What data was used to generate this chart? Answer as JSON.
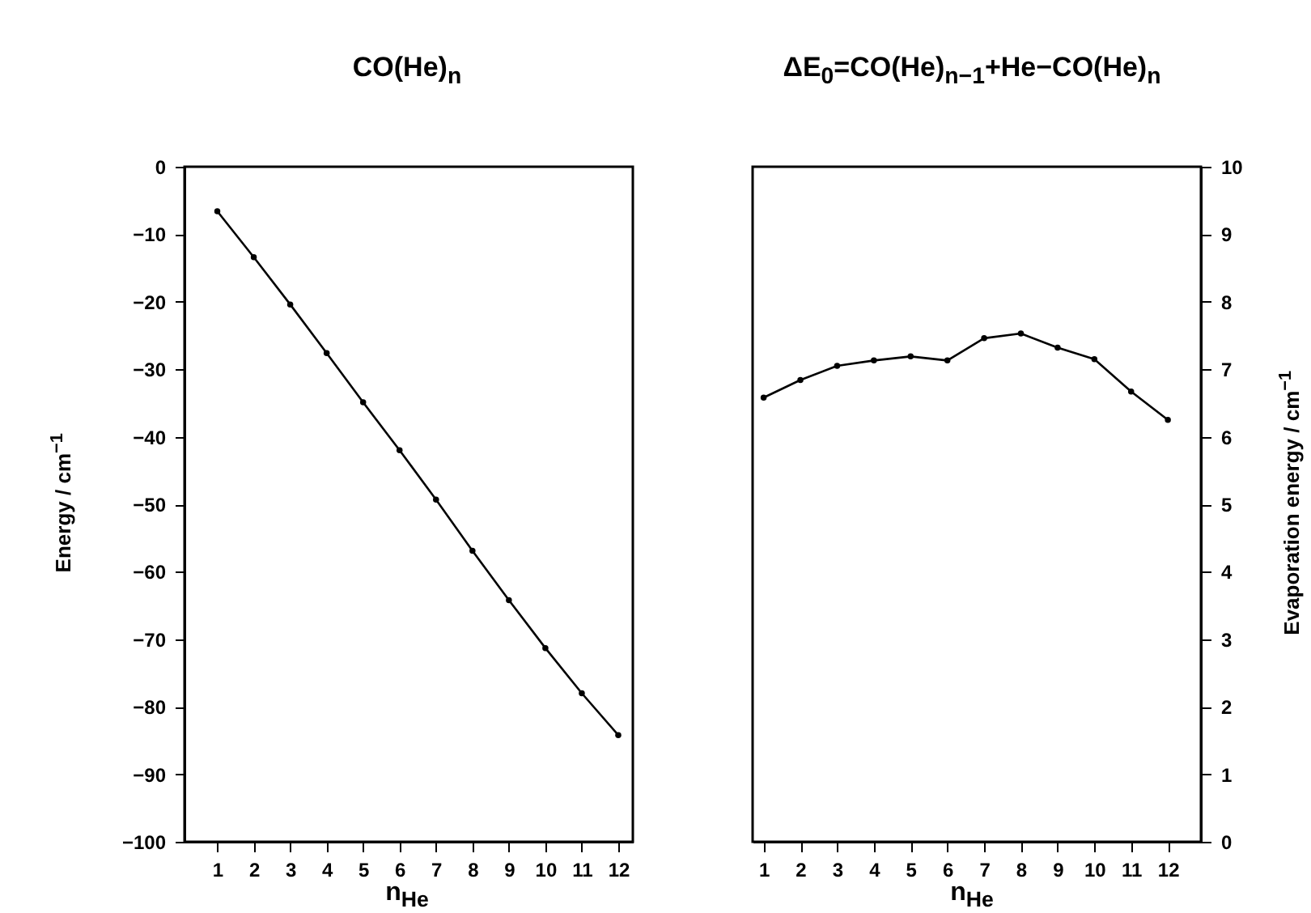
{
  "chart_data": [
    {
      "type": "line",
      "title": "CO(He)$_{n}$",
      "xlabel": "n$_{He}$",
      "ylabel": "Energy / cm$^{−1}$",
      "x": [
        1,
        2,
        3,
        4,
        5,
        6,
        7,
        8,
        9,
        10,
        11,
        12
      ],
      "xlim": [
        0.1,
        12.4
      ],
      "xticks": [
        1,
        2,
        3,
        4,
        5,
        6,
        7,
        8,
        9,
        10,
        11,
        12
      ],
      "ylim": [
        -100,
        0
      ],
      "yticks": [
        -100,
        -90,
        -80,
        -70,
        -60,
        -50,
        -40,
        -30,
        -20,
        -10,
        0
      ],
      "grid": false,
      "marker": "circle",
      "line_style": "solid",
      "series": [
        {
          "color": "#000000",
          "values": [
            -6.6,
            -13.4,
            -20.4,
            -27.6,
            -34.9,
            -42.0,
            -49.3,
            -56.9,
            -64.2,
            -71.3,
            -78.0,
            -84.2
          ]
        }
      ]
    },
    {
      "type": "line",
      "title": "ΔE$_{0}$=CO(He)$_{n−1}$+He−CO(He)$_{n}$",
      "xlabel": "n$_{He}$",
      "y2label": "Evaporation energy / cm$^{−1}$",
      "x": [
        1,
        2,
        3,
        4,
        5,
        6,
        7,
        8,
        9,
        10,
        11,
        12
      ],
      "xlim": [
        0.7,
        12.9
      ],
      "xticks": [
        1,
        2,
        3,
        4,
        5,
        6,
        7,
        8,
        9,
        10,
        11,
        12
      ],
      "y2lim": [
        0,
        10
      ],
      "y2ticks": [
        0,
        1,
        2,
        3,
        4,
        5,
        6,
        7,
        8,
        9,
        10
      ],
      "grid": false,
      "marker": "circle",
      "line_style": "solid",
      "series": [
        {
          "color": "#000000",
          "axis": "y2",
          "values": [
            6.58,
            6.84,
            7.05,
            7.13,
            7.19,
            7.13,
            7.46,
            7.53,
            7.32,
            7.15,
            6.67,
            6.25
          ]
        }
      ]
    }
  ]
}
